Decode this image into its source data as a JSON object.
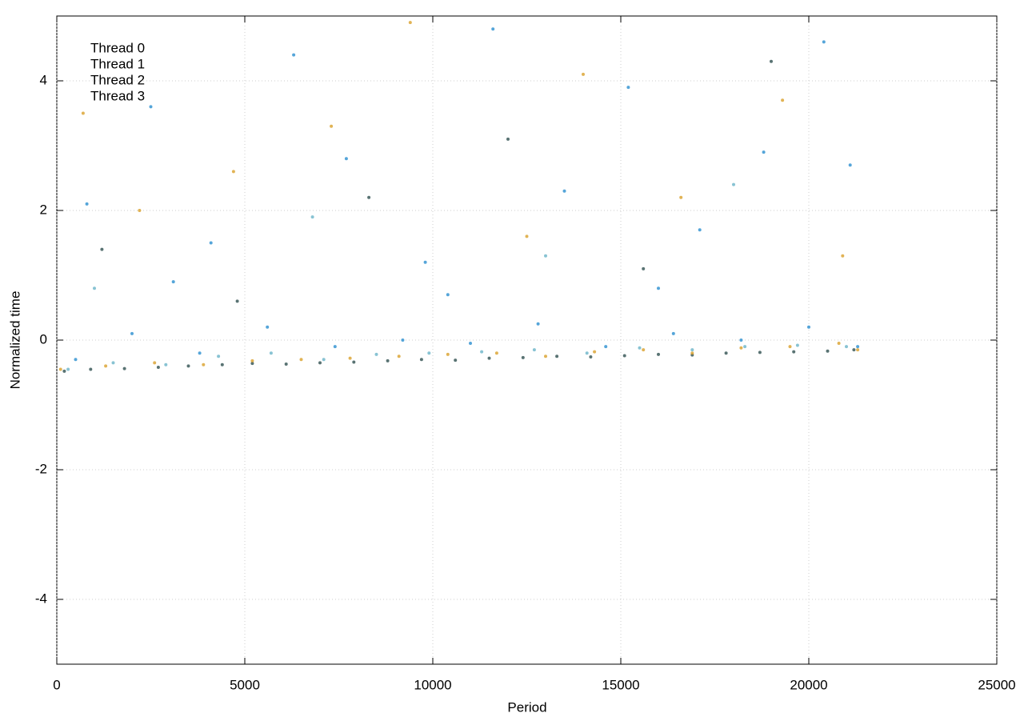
{
  "chart_data": {
    "type": "scatter",
    "xlabel": "Period",
    "ylabel": "Normalized time",
    "xlim": [
      0,
      25000
    ],
    "xticks": [
      0,
      5000,
      10000,
      15000,
      20000,
      25000
    ],
    "ylim": [
      -5,
      5
    ],
    "yticks": [
      -4,
      -2,
      0,
      2,
      4
    ],
    "grid": true,
    "legend": "top-left",
    "series": [
      {
        "name": "Thread 0",
        "color": "#2f5050",
        "x": [
          200,
          900,
          1800,
          2700,
          3500,
          4400,
          5200,
          6100,
          7000,
          7900,
          8800,
          9700,
          10600,
          11500,
          12400,
          13300,
          14200,
          15100,
          16000,
          16900,
          17800,
          18700,
          19600,
          20500,
          21200,
          1200,
          4800,
          8300,
          12000,
          15600,
          19000
        ],
        "values": [
          -0.48,
          -0.45,
          -0.44,
          -0.42,
          -0.4,
          -0.38,
          -0.36,
          -0.37,
          -0.35,
          -0.34,
          -0.32,
          -0.3,
          -0.31,
          -0.28,
          -0.27,
          -0.25,
          -0.26,
          -0.24,
          -0.22,
          -0.23,
          -0.2,
          -0.19,
          -0.18,
          -0.17,
          -0.15,
          1.4,
          0.6,
          2.2,
          3.1,
          1.1,
          4.3
        ]
      },
      {
        "name": "Thread 1",
        "color": "#2b8fd0",
        "x": [
          500,
          2000,
          3800,
          5600,
          7400,
          9200,
          11000,
          12800,
          14600,
          16400,
          18200,
          20000,
          21300,
          800,
          2500,
          4100,
          6300,
          7700,
          9800,
          11600,
          13500,
          15200,
          17100,
          18800,
          20400,
          21100,
          3100,
          10400,
          16000
        ],
        "values": [
          -0.3,
          0.1,
          -0.2,
          0.2,
          -0.1,
          0.0,
          -0.05,
          0.25,
          -0.1,
          0.1,
          0.0,
          0.2,
          -0.1,
          2.1,
          3.6,
          1.5,
          4.4,
          2.8,
          1.2,
          4.8,
          2.3,
          3.9,
          1.7,
          2.9,
          4.6,
          2.7,
          0.9,
          0.7,
          0.8
        ]
      },
      {
        "name": "Thread 2",
        "color": "#6ab4c8",
        "x": [
          300,
          1500,
          2900,
          4300,
          5700,
          7100,
          8500,
          9900,
          11300,
          12700,
          14100,
          15500,
          16900,
          18300,
          19700,
          21000,
          1000,
          6800,
          13000,
          18000
        ],
        "values": [
          -0.45,
          -0.35,
          -0.38,
          -0.25,
          -0.2,
          -0.3,
          -0.22,
          -0.2,
          -0.18,
          -0.15,
          -0.2,
          -0.12,
          -0.15,
          -0.1,
          -0.08,
          -0.1,
          0.8,
          1.9,
          1.3,
          2.4
        ]
      },
      {
        "name": "Thread 3",
        "color": "#daa02a",
        "x": [
          100,
          1300,
          2600,
          3900,
          5200,
          6500,
          7800,
          9100,
          10400,
          11700,
          13000,
          14300,
          15600,
          16900,
          18200,
          19500,
          20800,
          21300,
          700,
          2200,
          4700,
          7300,
          9400,
          12500,
          14000,
          16600,
          19300,
          20900
        ],
        "values": [
          -0.45,
          -0.4,
          -0.35,
          -0.38,
          -0.32,
          -0.3,
          -0.28,
          -0.25,
          -0.22,
          -0.2,
          -0.25,
          -0.18,
          -0.15,
          -0.2,
          -0.12,
          -0.1,
          -0.05,
          -0.15,
          3.5,
          2.0,
          2.6,
          3.3,
          4.9,
          1.6,
          4.1,
          2.2,
          3.7,
          1.3
        ]
      }
    ]
  }
}
